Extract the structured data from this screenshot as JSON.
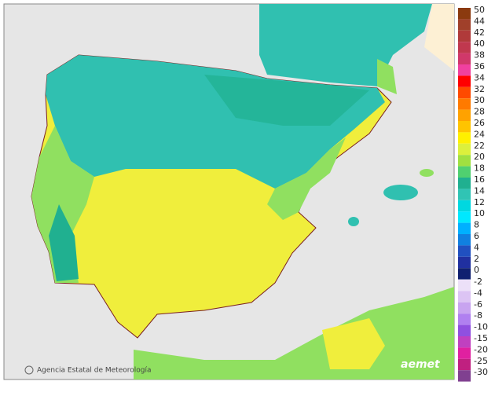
{
  "credit": "Agencia Estatal de Meteorología",
  "logo": "aemet",
  "legend": [
    {
      "value": 50,
      "color": "#8b3a0f"
    },
    {
      "value": 44,
      "color": "#a0402a"
    },
    {
      "value": 42,
      "color": "#b03a3a"
    },
    {
      "value": 40,
      "color": "#c0384e"
    },
    {
      "value": 38,
      "color": "#d0386a"
    },
    {
      "value": 36,
      "color": "#f040a0"
    },
    {
      "value": 34,
      "color": "#ff0000"
    },
    {
      "value": 32,
      "color": "#ff4a00"
    },
    {
      "value": 30,
      "color": "#ff7a00"
    },
    {
      "value": 28,
      "color": "#ffa200"
    },
    {
      "value": 26,
      "color": "#ffc400"
    },
    {
      "value": 24,
      "color": "#fff000"
    },
    {
      "value": 22,
      "color": "#dcf03c"
    },
    {
      "value": 20,
      "color": "#a0e040"
    },
    {
      "value": 18,
      "color": "#50d070"
    },
    {
      "value": 16,
      "color": "#20b090"
    },
    {
      "value": 14,
      "color": "#30c4b4"
    },
    {
      "value": 12,
      "color": "#00d8e0"
    },
    {
      "value": 10,
      "color": "#00e8ff"
    },
    {
      "value": 8,
      "color": "#00b0ff"
    },
    {
      "value": 6,
      "color": "#1080e0"
    },
    {
      "value": 4,
      "color": "#2050c0"
    },
    {
      "value": 2,
      "color": "#2030a0"
    },
    {
      "value": 0,
      "color": "#102070"
    }
  ],
  "legend_negative": [
    {
      "value": -2,
      "color": "#ece0f8"
    },
    {
      "value": -4,
      "color": "#dcc4f4"
    },
    {
      "value": -6,
      "color": "#c8a4f0"
    },
    {
      "value": -8,
      "color": "#b080f0"
    },
    {
      "value": -10,
      "color": "#9050e0"
    },
    {
      "value": -15,
      "color": "#c040c0"
    },
    {
      "value": -20,
      "color": "#e020a0"
    },
    {
      "value": -25,
      "color": "#c02080"
    },
    {
      "value": -30,
      "color": "#804090"
    }
  ]
}
